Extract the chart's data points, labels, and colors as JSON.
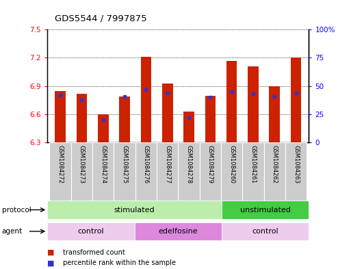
{
  "title": "GDS5544 / 7997875",
  "samples": [
    "GSM1084272",
    "GSM1084273",
    "GSM1084274",
    "GSM1084275",
    "GSM1084276",
    "GSM1084277",
    "GSM1084278",
    "GSM1084279",
    "GSM1084260",
    "GSM1084261",
    "GSM1084262",
    "GSM1084263"
  ],
  "red_values": [
    6.85,
    6.82,
    6.6,
    6.79,
    7.21,
    6.93,
    6.63,
    6.8,
    7.17,
    7.11,
    6.9,
    7.2
  ],
  "blue_values_pct": [
    42,
    38,
    20,
    41,
    47,
    44,
    22,
    40,
    45,
    43,
    41,
    44
  ],
  "ylim_left": [
    6.3,
    7.5
  ],
  "ylim_right": [
    0,
    100
  ],
  "yticks_left": [
    6.3,
    6.6,
    6.9,
    7.2,
    7.5
  ],
  "yticks_right": [
    0,
    25,
    50,
    75,
    100
  ],
  "ytick_labels_left": [
    "6.3",
    "6.6",
    "6.9",
    "7.2",
    "7.5"
  ],
  "ytick_labels_right": [
    "0",
    "25",
    "50",
    "75",
    "100%"
  ],
  "bar_bottom": 6.3,
  "bar_color": "#cc2200",
  "blue_color": "#3333cc",
  "protocol_groups": [
    {
      "label": "stimulated",
      "start": 0,
      "end": 7,
      "color": "#bbeeaa"
    },
    {
      "label": "unstimulated",
      "start": 8,
      "end": 11,
      "color": "#44cc44"
    }
  ],
  "agent_groups": [
    {
      "label": "control",
      "start": 0,
      "end": 3,
      "color": "#eeccee"
    },
    {
      "label": "edelfosine",
      "start": 4,
      "end": 7,
      "color": "#dd88dd"
    },
    {
      "label": "control",
      "start": 8,
      "end": 11,
      "color": "#eeccee"
    }
  ],
  "legend_items": [
    {
      "label": "transformed count",
      "color": "#cc2200"
    },
    {
      "label": "percentile rank within the sample",
      "color": "#3333cc"
    }
  ],
  "bg_color": "#ffffff",
  "bar_width": 0.5
}
